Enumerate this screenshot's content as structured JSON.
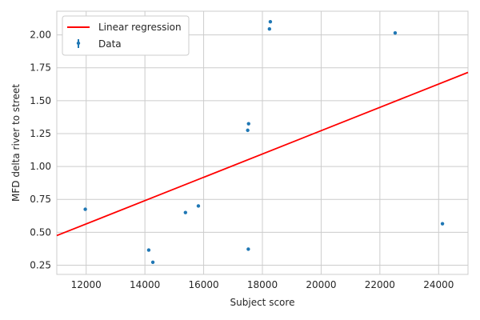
{
  "chart_data": {
    "type": "scatter",
    "title": "",
    "xlabel": "Subject score",
    "ylabel": "MFD delta river to street",
    "xlim": [
      11000,
      25000
    ],
    "ylim": [
      0.18,
      2.18
    ],
    "x_ticks": [
      12000,
      14000,
      16000,
      18000,
      20000,
      22000,
      24000
    ],
    "x_tick_labels": [
      "12000",
      "14000",
      "16000",
      "18000",
      "20000",
      "22000",
      "24000"
    ],
    "y_ticks": [
      0.25,
      0.5,
      0.75,
      1.0,
      1.25,
      1.5,
      1.75,
      2.0
    ],
    "y_tick_labels": [
      "0.25",
      "0.50",
      "0.75",
      "1.00",
      "1.25",
      "1.50",
      "1.75",
      "2.00"
    ],
    "grid": true,
    "legend_position": "top-left",
    "series": [
      {
        "name": "Data",
        "kind": "scatter",
        "color": "#1f77b4",
        "points": [
          {
            "x": 11970,
            "y": 0.675
          },
          {
            "x": 14130,
            "y": 0.365
          },
          {
            "x": 14270,
            "y": 0.272
          },
          {
            "x": 15380,
            "y": 0.65
          },
          {
            "x": 15820,
            "y": 0.7
          },
          {
            "x": 17500,
            "y": 1.275
          },
          {
            "x": 17530,
            "y": 1.325
          },
          {
            "x": 17520,
            "y": 0.372
          },
          {
            "x": 18240,
            "y": 2.045
          },
          {
            "x": 18270,
            "y": 2.1
          },
          {
            "x": 22520,
            "y": 2.015
          },
          {
            "x": 24130,
            "y": 0.565
          }
        ]
      },
      {
        "name": "Linear regression",
        "kind": "line",
        "color": "#ff0000",
        "points": [
          {
            "x": 11000,
            "y": 0.475
          },
          {
            "x": 25000,
            "y": 1.715
          }
        ]
      }
    ]
  }
}
